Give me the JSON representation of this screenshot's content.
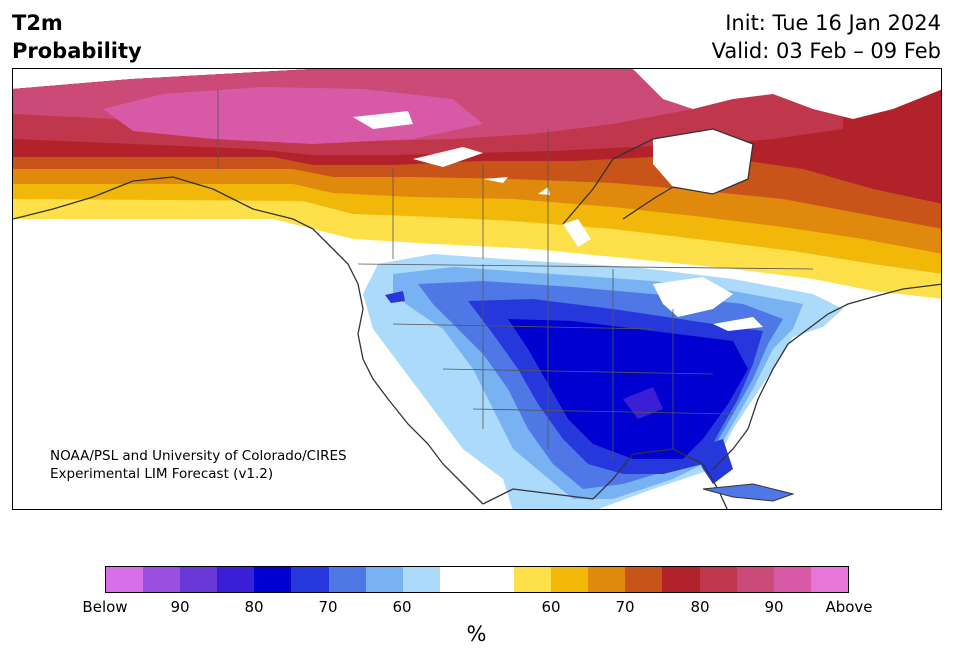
{
  "header": {
    "title_line1": "T2m",
    "title_line2": "Probability",
    "init": "Init: Tue 16 Jan 2024",
    "valid": "Valid: 03 Feb – 09 Feb"
  },
  "map": {
    "credit_line1": "NOAA/PSL and University of Colorado/CIRES",
    "credit_line2": "Experimental LIM Forecast (v1.2)"
  },
  "colorbar": {
    "colors": [
      "#d66fe8",
      "#9b4fe0",
      "#6a38d6",
      "#3a1fd6",
      "#0000d0",
      "#2638dc",
      "#4f78e6",
      "#78b2f2",
      "#acdafa",
      "#ffffff",
      "#ffffff",
      "#fde04a",
      "#f1b80a",
      "#df8a0c",
      "#c9541a",
      "#b2222a",
      "#c0364a",
      "#cc4a78",
      "#d85aa6",
      "#e876d8"
    ],
    "tick_labels": [
      "Below",
      "90",
      "80",
      "70",
      "60",
      "60",
      "70",
      "80",
      "90",
      "Above"
    ],
    "unit": "%"
  }
}
